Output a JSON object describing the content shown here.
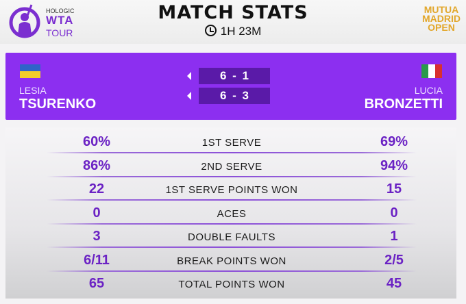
{
  "header": {
    "title": "MATCH STATS",
    "duration": "1H 23M",
    "wta_logo": {
      "line1": "HOLOGIC",
      "line2": "WTA",
      "line3": "TOUR"
    },
    "event_logo": {
      "line1": "MUTUA",
      "line2": "MADRID",
      "line3": "OPEN"
    }
  },
  "players": {
    "left": {
      "first": "LESIA",
      "last": "TSURENKO",
      "flag": "Ukraine"
    },
    "right": {
      "first": "LUCIA",
      "last": "BRONZETTI",
      "flag": "Italy"
    }
  },
  "sets": [
    "6 - 1",
    "6 - 3"
  ],
  "stats": [
    {
      "label": "1ST SERVE",
      "left": "60%",
      "right": "69%"
    },
    {
      "label": "2ND SERVE",
      "left": "86%",
      "right": "94%"
    },
    {
      "label": "1ST SERVE POINTS WON",
      "left": "22",
      "right": "15"
    },
    {
      "label": "ACES",
      "left": "0",
      "right": "0"
    },
    {
      "label": "DOUBLE FAULTS",
      "left": "3",
      "right": "1"
    },
    {
      "label": "BREAK POINTS WON",
      "left": "6/11",
      "right": "2/5"
    },
    {
      "label": "TOTAL POINTS WON",
      "left": "65",
      "right": "45"
    }
  ],
  "colors": {
    "accent": "#8c2ff0",
    "value": "#6b22c4"
  }
}
